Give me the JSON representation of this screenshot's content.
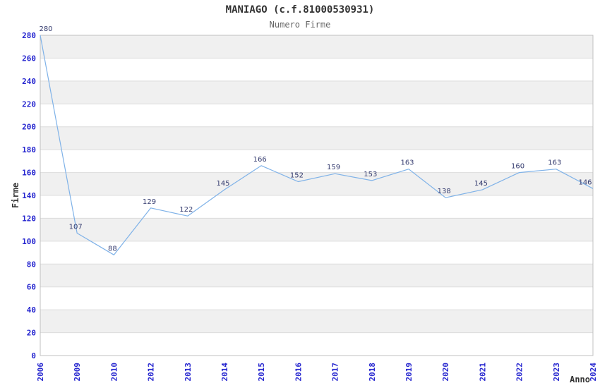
{
  "chart": {
    "title": "MANIAGO (c.f.81000530931)",
    "subtitle": "Numero Firme",
    "xlabel": "Anno",
    "ylabel": "Firme"
  },
  "chart_data": {
    "type": "line",
    "title": "MANIAGO (c.f.81000530931)",
    "subtitle": "Numero Firme",
    "xlabel": "Anno",
    "ylabel": "Firme",
    "x": [
      "2006",
      "2009",
      "2010",
      "2012",
      "2013",
      "2014",
      "2015",
      "2016",
      "2017",
      "2018",
      "2019",
      "2020",
      "2021",
      "2022",
      "2023",
      "2024"
    ],
    "values": [
      280,
      107,
      88,
      129,
      122,
      145,
      166,
      152,
      159,
      153,
      163,
      138,
      145,
      160,
      163,
      146
    ],
    "ylim": [
      0,
      280
    ],
    "ytick_step": 20,
    "x_spacing": "categorical-even",
    "grid": "horizontal-bands-alternating",
    "legend": "none",
    "data_labels": "above-points",
    "colors": {
      "line": "#7fb2e8",
      "tick_label": "#2525cf",
      "data_label": "#333a6e",
      "band_gray": "#f0f0f0",
      "gridline": "#dcdcdc",
      "plot_border": "#c0c0c0",
      "title": "#333333",
      "subtitle": "#666666",
      "axis_title": "#333333",
      "background": "#ffffff"
    }
  }
}
